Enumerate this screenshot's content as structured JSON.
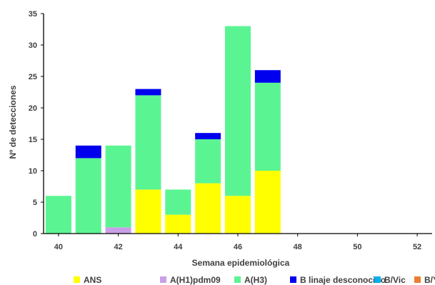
{
  "chart_data": {
    "type": "bar",
    "stacked": true,
    "xlabel": "Semana epidemiológica",
    "ylabel": "Nº de detecciones",
    "ylim": [
      0,
      35
    ],
    "yticks": [
      0,
      5,
      10,
      15,
      20,
      25,
      30,
      35
    ],
    "xlim": [
      39.5,
      52.5
    ],
    "xticks": [
      40,
      42,
      44,
      46,
      48,
      50,
      52
    ],
    "x": [
      40,
      41,
      42,
      43,
      44,
      45,
      46,
      47
    ],
    "grid": false,
    "legend_position": "bottom",
    "series": [
      {
        "name": "ANS",
        "color": "#ffff00",
        "values": [
          0,
          0,
          0,
          7,
          3,
          8,
          6,
          10
        ]
      },
      {
        "name": "A(H1)pdm09",
        "color": "#c9a0e8",
        "values": [
          0,
          0,
          1,
          0,
          0,
          0,
          0,
          0
        ]
      },
      {
        "name": "A(H3)",
        "color": "#5af592",
        "values": [
          6,
          12,
          13,
          15,
          4,
          7,
          27,
          14
        ]
      },
      {
        "name": "B linaje desconocido",
        "color": "#0000ee",
        "values": [
          0,
          2,
          0,
          1,
          0,
          1,
          0,
          2
        ]
      },
      {
        "name": "B/Vic",
        "color": "#00b0f0",
        "values": [
          0,
          0,
          0,
          0,
          0,
          0,
          0,
          0
        ]
      },
      {
        "name": "B/Yam",
        "color": "#ed7d31",
        "values": [
          0,
          0,
          0,
          0,
          0,
          0,
          0,
          0
        ]
      }
    ]
  }
}
